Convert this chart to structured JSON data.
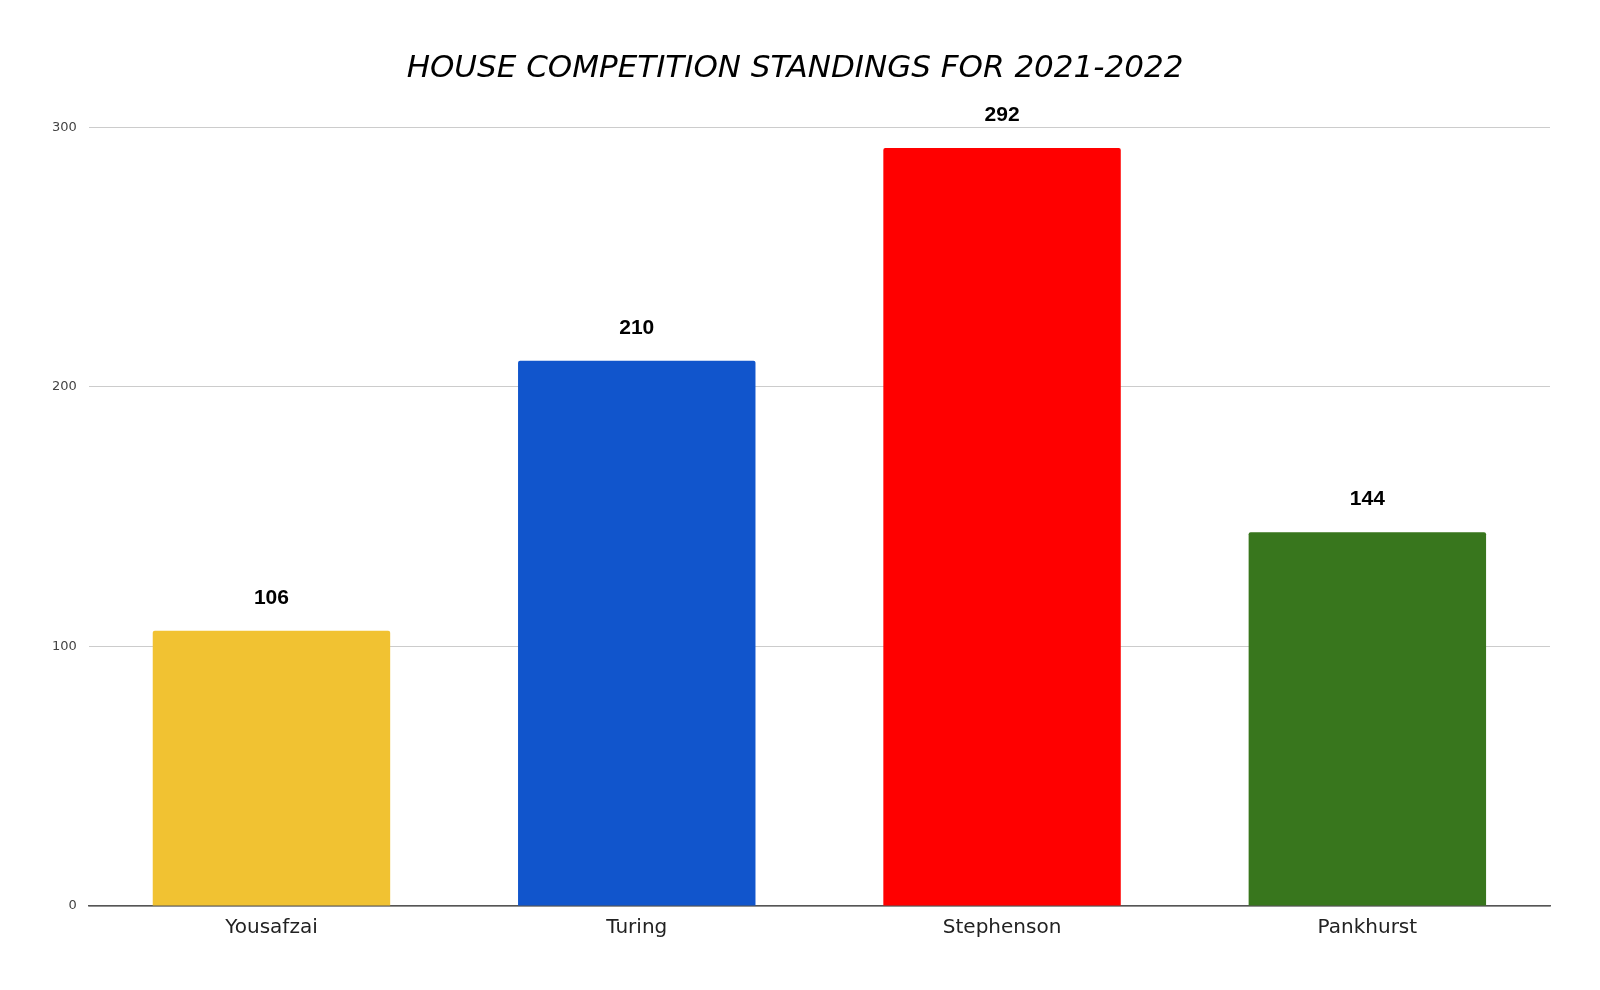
{
  "chart_data": {
    "type": "bar",
    "title": "HOUSE COMPETITION STANDINGS FOR 2021-2022",
    "categories": [
      "Yousafzai",
      "Turing",
      "Stephenson",
      "Pankhurst"
    ],
    "values": [
      106,
      210,
      292,
      144
    ],
    "colors": [
      "#f1c232",
      "#1155cc",
      "#ff0000",
      "#38761d"
    ],
    "ylim": [
      0,
      300
    ],
    "yticks": [
      0,
      100,
      200,
      300
    ],
    "grid": "y",
    "legend": false,
    "data_labels": true
  }
}
